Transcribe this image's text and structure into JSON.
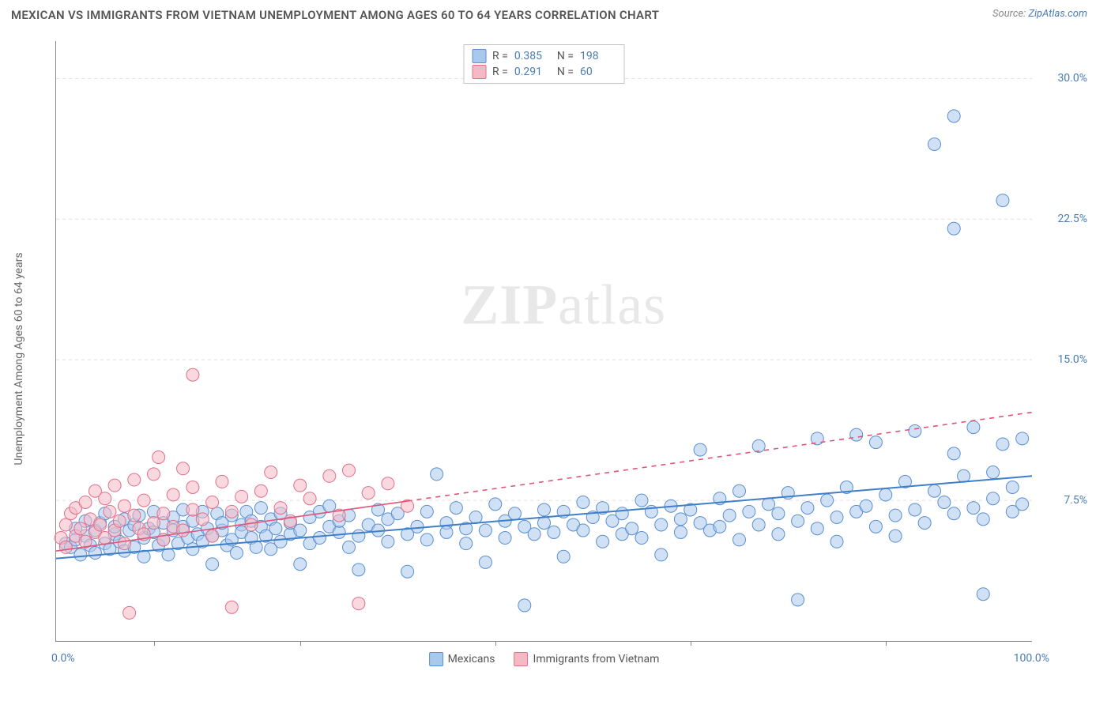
{
  "header": {
    "title": "MEXICAN VS IMMIGRANTS FROM VIETNAM UNEMPLOYMENT AMONG AGES 60 TO 64 YEARS CORRELATION CHART",
    "source_prefix": "Source: ",
    "source_link": "ZipAtlas.com"
  },
  "watermark": {
    "zip": "ZIP",
    "atlas": "atlas"
  },
  "chart": {
    "type": "scatter",
    "y_axis_label": "Unemployment Among Ages 60 to 64 years",
    "xlim": [
      0,
      100
    ],
    "ylim": [
      0,
      32
    ],
    "x_range_labels": {
      "min": "0.0%",
      "max": "100.0%"
    },
    "x_ticks_pct": [
      10,
      25,
      45,
      65,
      85
    ],
    "y_ticks": [
      {
        "v": 7.5,
        "label": "7.5%"
      },
      {
        "v": 15.0,
        "label": "15.0%"
      },
      {
        "v": 22.5,
        "label": "22.5%"
      },
      {
        "v": 30.0,
        "label": "30.0%"
      }
    ],
    "grid_color": "#e0e0e0",
    "background_color": "#ffffff",
    "marker_radius": 8,
    "marker_opacity": 0.55,
    "series": [
      {
        "key": "mexicans",
        "label": "Mexicans",
        "fill": "#a9c9ec",
        "stroke": "#5a8fcf",
        "r": 0.385,
        "n": 198,
        "trend": {
          "x1": 0,
          "y1": 4.4,
          "x2": 100,
          "y2": 8.8,
          "solid_until_x": 100,
          "stroke": "#3f7fc9",
          "width": 2
        },
        "points": [
          [
            1,
            5.2
          ],
          [
            1.5,
            5.0
          ],
          [
            2,
            6.0
          ],
          [
            2,
            5.4
          ],
          [
            2.5,
            4.6
          ],
          [
            3,
            5.6
          ],
          [
            3,
            6.4
          ],
          [
            3.5,
            5.1
          ],
          [
            4,
            5.9
          ],
          [
            4,
            4.7
          ],
          [
            4.5,
            6.3
          ],
          [
            5,
            5.2
          ],
          [
            5,
            6.8
          ],
          [
            5.5,
            4.9
          ],
          [
            6,
            5.7
          ],
          [
            6,
            6.1
          ],
          [
            6.5,
            5.3
          ],
          [
            7,
            6.5
          ],
          [
            7,
            4.8
          ],
          [
            7.5,
            5.9
          ],
          [
            8,
            6.2
          ],
          [
            8,
            5.0
          ],
          [
            8.5,
            6.7
          ],
          [
            9,
            5.5
          ],
          [
            9,
            4.5
          ],
          [
            9.5,
            6.0
          ],
          [
            10,
            5.8
          ],
          [
            10,
            6.9
          ],
          [
            10.5,
            5.1
          ],
          [
            11,
            6.3
          ],
          [
            11,
            5.4
          ],
          [
            11.5,
            4.6
          ],
          [
            12,
            6.6
          ],
          [
            12,
            5.9
          ],
          [
            12.5,
            5.2
          ],
          [
            13,
            6.1
          ],
          [
            13,
            7.0
          ],
          [
            13.5,
            5.5
          ],
          [
            14,
            4.9
          ],
          [
            14,
            6.4
          ],
          [
            14.5,
            5.7
          ],
          [
            15,
            6.9
          ],
          [
            15,
            5.3
          ],
          [
            15.5,
            6.0
          ],
          [
            16,
            5.6
          ],
          [
            16,
            4.1
          ],
          [
            16.5,
            6.8
          ],
          [
            17,
            5.9
          ],
          [
            17,
            6.3
          ],
          [
            17.5,
            5.1
          ],
          [
            18,
            6.7
          ],
          [
            18,
            5.4
          ],
          [
            18.5,
            4.7
          ],
          [
            19,
            6.2
          ],
          [
            19,
            5.8
          ],
          [
            19.5,
            6.9
          ],
          [
            20,
            5.5
          ],
          [
            20,
            6.4
          ],
          [
            20.5,
            5.0
          ],
          [
            21,
            6.1
          ],
          [
            21,
            7.1
          ],
          [
            21.5,
            5.6
          ],
          [
            22,
            6.5
          ],
          [
            22,
            4.9
          ],
          [
            22.5,
            6.0
          ],
          [
            23,
            5.3
          ],
          [
            23,
            6.8
          ],
          [
            24,
            5.7
          ],
          [
            24,
            6.3
          ],
          [
            25,
            5.9
          ],
          [
            25,
            4.1
          ],
          [
            26,
            6.6
          ],
          [
            26,
            5.2
          ],
          [
            27,
            6.9
          ],
          [
            27,
            5.5
          ],
          [
            28,
            6.1
          ],
          [
            28,
            7.2
          ],
          [
            29,
            5.8
          ],
          [
            29,
            6.4
          ],
          [
            30,
            5.0
          ],
          [
            30,
            6.7
          ],
          [
            31,
            5.6
          ],
          [
            31,
            3.8
          ],
          [
            32,
            6.2
          ],
          [
            33,
            5.9
          ],
          [
            33,
            7.0
          ],
          [
            34,
            6.5
          ],
          [
            34,
            5.3
          ],
          [
            35,
            6.8
          ],
          [
            36,
            5.7
          ],
          [
            36,
            3.7
          ],
          [
            37,
            6.1
          ],
          [
            38,
            6.9
          ],
          [
            38,
            5.4
          ],
          [
            39,
            8.9
          ],
          [
            40,
            6.3
          ],
          [
            40,
            5.8
          ],
          [
            41,
            7.1
          ],
          [
            42,
            6.0
          ],
          [
            42,
            5.2
          ],
          [
            43,
            6.6
          ],
          [
            44,
            5.9
          ],
          [
            44,
            4.2
          ],
          [
            45,
            7.3
          ],
          [
            46,
            6.4
          ],
          [
            46,
            5.5
          ],
          [
            47,
            6.8
          ],
          [
            48,
            6.1
          ],
          [
            48,
            1.9
          ],
          [
            49,
            5.7
          ],
          [
            50,
            7.0
          ],
          [
            50,
            6.3
          ],
          [
            51,
            5.8
          ],
          [
            52,
            6.9
          ],
          [
            52,
            4.5
          ],
          [
            53,
            6.2
          ],
          [
            54,
            7.4
          ],
          [
            54,
            5.9
          ],
          [
            55,
            6.6
          ],
          [
            56,
            5.3
          ],
          [
            56,
            7.1
          ],
          [
            57,
            6.4
          ],
          [
            58,
            5.7
          ],
          [
            58,
            6.8
          ],
          [
            59,
            6.0
          ],
          [
            60,
            7.5
          ],
          [
            60,
            5.5
          ],
          [
            61,
            6.9
          ],
          [
            62,
            6.2
          ],
          [
            62,
            4.6
          ],
          [
            63,
            7.2
          ],
          [
            64,
            6.5
          ],
          [
            64,
            5.8
          ],
          [
            65,
            7.0
          ],
          [
            66,
            6.3
          ],
          [
            66,
            10.2
          ],
          [
            67,
            5.9
          ],
          [
            68,
            7.6
          ],
          [
            68,
            6.1
          ],
          [
            69,
            6.7
          ],
          [
            70,
            5.4
          ],
          [
            70,
            8.0
          ],
          [
            71,
            6.9
          ],
          [
            72,
            6.2
          ],
          [
            72,
            10.4
          ],
          [
            73,
            7.3
          ],
          [
            74,
            5.7
          ],
          [
            74,
            6.8
          ],
          [
            75,
            7.9
          ],
          [
            76,
            6.4
          ],
          [
            76,
            2.2
          ],
          [
            77,
            7.1
          ],
          [
            78,
            6.0
          ],
          [
            78,
            10.8
          ],
          [
            79,
            7.5
          ],
          [
            80,
            6.6
          ],
          [
            80,
            5.3
          ],
          [
            81,
            8.2
          ],
          [
            82,
            6.9
          ],
          [
            82,
            11.0
          ],
          [
            83,
            7.2
          ],
          [
            84,
            6.1
          ],
          [
            84,
            10.6
          ],
          [
            85,
            7.8
          ],
          [
            86,
            6.7
          ],
          [
            86,
            5.6
          ],
          [
            87,
            8.5
          ],
          [
            88,
            7.0
          ],
          [
            88,
            11.2
          ],
          [
            89,
            6.3
          ],
          [
            90,
            8.0
          ],
          [
            90,
            26.5
          ],
          [
            91,
            7.4
          ],
          [
            92,
            6.8
          ],
          [
            92,
            10.0
          ],
          [
            92,
            28.0
          ],
          [
            92,
            22.0
          ],
          [
            93,
            8.8
          ],
          [
            94,
            7.1
          ],
          [
            94,
            11.4
          ],
          [
            95,
            6.5
          ],
          [
            95,
            2.5
          ],
          [
            96,
            9.0
          ],
          [
            96,
            7.6
          ],
          [
            97,
            10.5
          ],
          [
            97,
            23.5
          ],
          [
            98,
            8.2
          ],
          [
            98,
            6.9
          ],
          [
            99,
            10.8
          ],
          [
            99,
            7.3
          ]
        ]
      },
      {
        "key": "vietnam",
        "label": "Immigrants from Vietnam",
        "fill": "#f4b9c5",
        "stroke": "#e26f8a",
        "r": 0.291,
        "n": 60,
        "trend": {
          "x1": 0,
          "y1": 4.8,
          "x2": 100,
          "y2": 12.2,
          "solid_until_x": 36,
          "stroke": "#e05577",
          "width": 1.6
        },
        "points": [
          [
            0.5,
            5.5
          ],
          [
            1,
            6.2
          ],
          [
            1,
            5.0
          ],
          [
            1.5,
            6.8
          ],
          [
            2,
            5.6
          ],
          [
            2,
            7.1
          ],
          [
            2.5,
            6.0
          ],
          [
            3,
            5.3
          ],
          [
            3,
            7.4
          ],
          [
            3.5,
            6.5
          ],
          [
            4,
            5.8
          ],
          [
            4,
            8.0
          ],
          [
            4.5,
            6.2
          ],
          [
            5,
            7.6
          ],
          [
            5,
            5.5
          ],
          [
            5.5,
            6.9
          ],
          [
            6,
            5.9
          ],
          [
            6,
            8.3
          ],
          [
            6.5,
            6.4
          ],
          [
            7,
            7.2
          ],
          [
            7,
            5.2
          ],
          [
            7.5,
            1.5
          ],
          [
            8,
            6.7
          ],
          [
            8,
            8.6
          ],
          [
            8.5,
            6.0
          ],
          [
            9,
            7.5
          ],
          [
            9,
            5.7
          ],
          [
            10,
            6.3
          ],
          [
            10,
            8.9
          ],
          [
            10.5,
            9.8
          ],
          [
            11,
            6.8
          ],
          [
            11,
            5.4
          ],
          [
            12,
            7.8
          ],
          [
            12,
            6.1
          ],
          [
            13,
            9.2
          ],
          [
            13,
            5.9
          ],
          [
            14,
            7.0
          ],
          [
            14,
            8.2
          ],
          [
            14,
            14.2
          ],
          [
            15,
            6.5
          ],
          [
            16,
            7.4
          ],
          [
            16,
            5.6
          ],
          [
            17,
            8.5
          ],
          [
            18,
            6.9
          ],
          [
            18,
            1.8
          ],
          [
            19,
            7.7
          ],
          [
            20,
            6.2
          ],
          [
            21,
            8.0
          ],
          [
            22,
            9.0
          ],
          [
            23,
            7.1
          ],
          [
            24,
            6.4
          ],
          [
            25,
            8.3
          ],
          [
            26,
            7.6
          ],
          [
            28,
            8.8
          ],
          [
            29,
            6.7
          ],
          [
            30,
            9.1
          ],
          [
            31,
            2.0
          ],
          [
            32,
            7.9
          ],
          [
            34,
            8.4
          ],
          [
            36,
            7.2
          ]
        ]
      }
    ],
    "legend_bottom": [
      {
        "key": "mexicans",
        "label": "Mexicans"
      },
      {
        "key": "vietnam",
        "label": "Immigrants from Vietnam"
      }
    ],
    "legend_top_labels": {
      "R": "R =",
      "N": "N ="
    }
  }
}
